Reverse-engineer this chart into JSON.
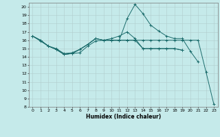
{
  "xlabel": "Humidex (Indice chaleur)",
  "bg_color": "#c5eaea",
  "grid_color": "#b0cccc",
  "line_color": "#1a6b6b",
  "xlim": [
    -0.5,
    23.5
  ],
  "ylim": [
    8,
    20.5
  ],
  "yticks": [
    8,
    9,
    10,
    11,
    12,
    13,
    14,
    15,
    16,
    17,
    18,
    19,
    20
  ],
  "xticks": [
    0,
    1,
    2,
    3,
    4,
    5,
    6,
    7,
    8,
    9,
    10,
    11,
    12,
    13,
    14,
    15,
    16,
    17,
    18,
    19,
    20,
    21,
    22,
    23
  ],
  "series": [
    [
      16.5,
      15.9,
      15.3,
      14.9,
      14.3,
      14.4,
      14.5,
      15.3,
      15.9,
      16.0,
      16.0,
      16.0,
      16.0,
      16.0,
      16.0,
      16.0,
      16.0,
      16.0,
      16.0,
      16.0,
      16.0,
      16.0,
      12.2,
      8.3
    ],
    [
      16.5,
      16.0,
      15.3,
      15.0,
      14.4,
      14.5,
      14.9,
      15.5,
      16.2,
      16.0,
      16.0,
      16.0,
      18.6,
      20.3,
      19.2,
      17.8,
      17.1,
      16.5,
      16.2,
      16.2,
      14.7,
      13.4,
      null,
      null
    ],
    [
      16.5,
      16.0,
      15.3,
      14.9,
      14.3,
      14.4,
      14.9,
      15.5,
      16.2,
      16.0,
      16.2,
      16.5,
      17.0,
      16.2,
      15.0,
      15.0,
      15.0,
      15.0,
      15.0,
      14.8,
      null,
      null,
      null,
      null
    ],
    [
      16.5,
      16.0,
      15.3,
      14.9,
      14.3,
      14.4,
      14.9,
      15.5,
      16.2,
      16.0,
      16.0,
      16.0,
      16.0,
      16.0,
      15.0,
      15.0,
      15.0,
      15.0,
      15.0,
      14.8,
      null,
      null,
      null,
      null
    ]
  ]
}
